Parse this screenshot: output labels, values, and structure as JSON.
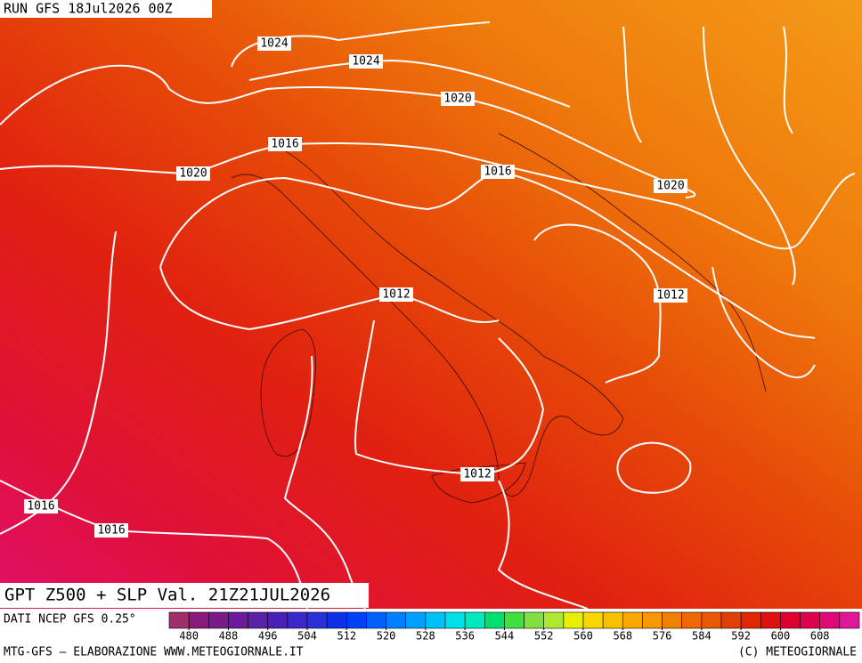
{
  "header": {
    "run": "RUN GFS 18Jul2026 00Z"
  },
  "map": {
    "title": "GPT Z500 + SLP Val. 21Z21JUL2026",
    "source": "DATI NCEP GFS 0.25°",
    "isobar_labels": [
      1024,
      1024,
      1020,
      1016,
      1020,
      1016,
      1020,
      1012,
      1012,
      1012,
      1016,
      1016
    ]
  },
  "colorbar": {
    "lim": [
      476,
      616
    ],
    "step": 4,
    "colors": [
      "#a0306a",
      "#8a1a7a",
      "#7a1a8a",
      "#6a1a9a",
      "#5a20a8",
      "#4a20b8",
      "#3a28c8",
      "#2a30d8",
      "#1030e8",
      "#0040f8",
      "#0060ff",
      "#0080ff",
      "#00a0ff",
      "#00c0f8",
      "#00e0e8",
      "#00e8c0",
      "#00e070",
      "#40e040",
      "#80e040",
      "#b0e830",
      "#e8f000",
      "#f8d800",
      "#f8c000",
      "#f8a800",
      "#f89800",
      "#f08000",
      "#f06800",
      "#e85800",
      "#e04000",
      "#e02800",
      "#e01010",
      "#e00030",
      "#e00050",
      "#e00878",
      "#e01898"
    ],
    "ticks": [
      480,
      488,
      496,
      504,
      512,
      520,
      528,
      536,
      544,
      552,
      560,
      568,
      576,
      584,
      592,
      600,
      608
    ]
  },
  "footer": {
    "left": "MTG-GFS — ELABORAZIONE WWW.METEOGIORNALE.IT",
    "right": "(C) METEOGIORNALE"
  }
}
